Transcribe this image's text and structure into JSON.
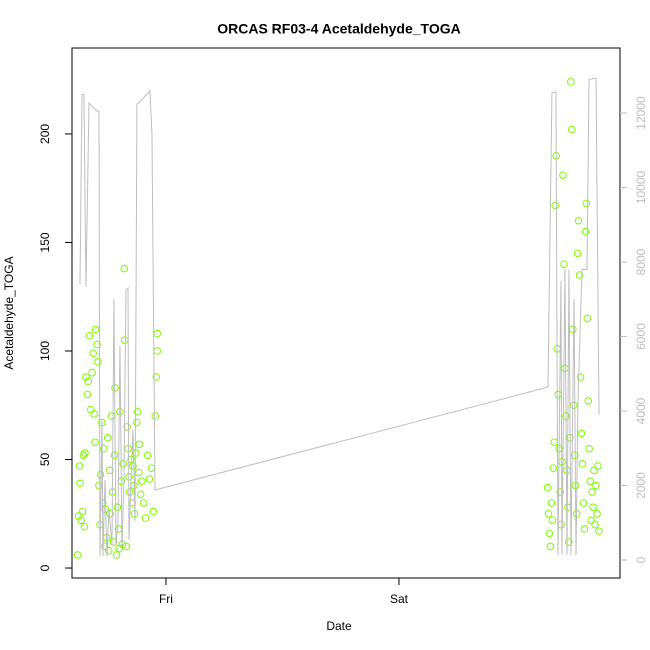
{
  "chart_data": {
    "type": "scatter",
    "title": "ORCAS RF03-4 Acetaldehyde_TOGA",
    "x_label": "Date",
    "y_label": "Acetaldehyde_TOGA",
    "xlim": [
      -9.68,
      46.77
    ],
    "xticks": [
      {
        "value": 0,
        "label": "Fri"
      },
      {
        "value": 24,
        "label": "Sat"
      }
    ],
    "ylim": [
      -4.6,
      239.6
    ],
    "yticks": [
      0,
      50,
      100,
      150,
      200
    ],
    "y2lim": [
      -483,
      13745
    ],
    "y2ticks": [
      0,
      2000,
      4000,
      6000,
      8000,
      10000,
      12000
    ],
    "series": [
      {
        "type": "scatter",
        "color": "#7cfc00",
        "x": [
          -9.1,
          -9.0,
          -8.9,
          -8.85,
          -8.75,
          -8.6,
          -8.5,
          -8.4,
          -8.35,
          -8.25,
          -8.1,
          -8.0,
          -7.9,
          -7.75,
          -7.6,
          -7.5,
          -7.4,
          -7.3,
          -7.25,
          -7.1,
          -7.0,
          -6.9,
          -6.8,
          -6.75,
          -6.6,
          -6.5,
          -6.4,
          -6.3,
          -6.25,
          -6.1,
          -6.0,
          -5.9,
          -5.8,
          -5.75,
          -5.6,
          -5.5,
          -5.4,
          -5.3,
          -5.25,
          -5.1,
          -5.0,
          -4.9,
          -4.8,
          -4.75,
          -4.6,
          -4.5,
          -4.4,
          -4.3,
          -4.25,
          -4.1,
          -4.0,
          -3.9,
          -3.8,
          -3.75,
          -3.6,
          -3.5,
          -3.4,
          -3.3,
          -3.25,
          -3.1,
          -3.0,
          -2.9,
          -2.8,
          -2.75,
          -2.6,
          -2.5,
          -2.3,
          -2.1,
          -1.9,
          -1.7,
          -1.5,
          -1.3,
          -1.1,
          -0.9,
          -0.9,
          -1.0,
          39.3,
          39.4,
          39.5,
          39.6,
          39.7,
          39.8,
          39.9,
          40.0,
          40.1,
          40.2,
          40.3,
          40.4,
          40.5,
          40.6,
          40.7,
          40.8,
          40.9,
          41.0,
          41.1,
          41.2,
          41.3,
          41.4,
          41.5,
          41.6,
          41.7,
          41.8,
          41.9,
          42.0,
          42.1,
          42.2,
          42.3,
          42.4,
          42.5,
          42.6,
          42.7,
          42.8,
          42.9,
          43.0,
          43.1,
          43.2,
          43.3,
          43.4,
          43.5,
          43.6,
          43.7,
          43.8,
          43.9,
          44.0,
          44.1,
          44.2,
          44.3,
          44.4,
          44.5,
          44.6
        ],
        "values": [
          6,
          24,
          47,
          39,
          22,
          26,
          52,
          19,
          53,
          88,
          80,
          86,
          107,
          73,
          90,
          99,
          71,
          58,
          110,
          103,
          95,
          38,
          20,
          43,
          67,
          30,
          55,
          10,
          27,
          14,
          60,
          8,
          45,
          25,
          70,
          35,
          12,
          52,
          83,
          6,
          28,
          18,
          9,
          72,
          40,
          11,
          48,
          138,
          105,
          10,
          65,
          55,
          42,
          35,
          50,
          30,
          47,
          38,
          25,
          53,
          67,
          72,
          44,
          57,
          34,
          40,
          30,
          23,
          52,
          41,
          46,
          26,
          70,
          100,
          108,
          88,
          37,
          25,
          16,
          10,
          30,
          22,
          46,
          58,
          167,
          190,
          101,
          80,
          55,
          35,
          20,
          49,
          181,
          140,
          92,
          70,
          45,
          28,
          12,
          60,
          224,
          202,
          110,
          75,
          52,
          38,
          25,
          145,
          160,
          135,
          88,
          62,
          48,
          30,
          18,
          155,
          168,
          115,
          77,
          55,
          40,
          22,
          35,
          28,
          45,
          20,
          38,
          25,
          47,
          17
        ]
      },
      {
        "type": "line",
        "color": "#bebebe",
        "axis": "y2",
        "x": [
          -8.86,
          -8.65,
          -8.45,
          -8.24,
          -7.93,
          -7.11,
          -6.9,
          -6.8,
          -6.59,
          -6.49,
          -6.28,
          -6.08,
          -5.87,
          -5.56,
          -5.36,
          -5.15,
          -4.94,
          -4.74,
          -4.53,
          -4.33,
          -4.12,
          -3.91,
          -3.81,
          -3.6,
          -3.4,
          -3.19,
          -2.99,
          -2.68,
          -1.65,
          -1.44,
          -1.13,
          39.35,
          39.76,
          40.17,
          40.38,
          40.69,
          40.79,
          41.1,
          41.31,
          41.51,
          41.72,
          42.03,
          42.24,
          42.44,
          42.86,
          43.37,
          43.58,
          44.3,
          44.61
        ],
        "values": [
          7400,
          12500,
          12500,
          7330,
          12270,
          12050,
          12050,
          100,
          3750,
          100,
          2150,
          100,
          1350,
          400,
          7000,
          400,
          1050,
          5750,
          270,
          2150,
          7250,
          7300,
          540,
          2150,
          3500,
          1050,
          12240,
          12300,
          12600,
          11400,
          1880,
          4640,
          12540,
          12560,
          130,
          7500,
          130,
          7800,
          130,
          7800,
          130,
          7000,
          130,
          4300,
          7800,
          7800,
          12900,
          12940,
          3900
        ]
      }
    ]
  }
}
